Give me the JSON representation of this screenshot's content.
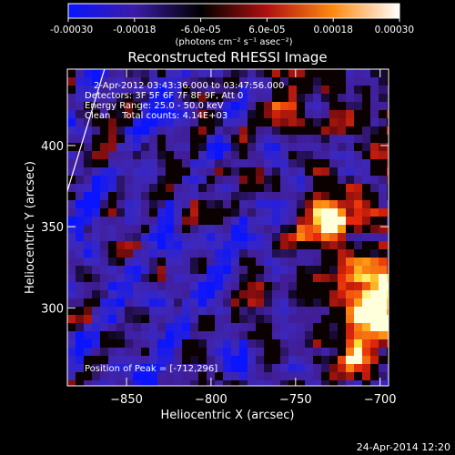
{
  "colorbar": {
    "tick_labels": [
      "-0.00030",
      "-0.00018",
      "-6.0e-05",
      "6.0e-05",
      "0.00018",
      "0.00030"
    ],
    "unit_label": "(photons cm⁻² s⁻¹ asec⁻²)",
    "range": [
      -0.0003,
      0.0003
    ],
    "colors": [
      "#0a14ff",
      "#3b1ca6",
      "#000000",
      "#b01010",
      "#ff8a10",
      "#ffffff"
    ]
  },
  "chart_data": {
    "type": "heatmap",
    "title": "Reconstructed RHESSI Image",
    "xlabel": "Heliocentric X (arcsec)",
    "ylabel": "Heliocentric Y (arcsec)",
    "xlim": [
      -885,
      -695
    ],
    "ylim": [
      252,
      447
    ],
    "xticks": [
      -850,
      -800,
      -750,
      -700
    ],
    "yticks": [
      300,
      350,
      400
    ],
    "xtick_labels": [
      "−850",
      "−800",
      "−750",
      "−700"
    ],
    "ytick_labels": [
      "300",
      "350",
      "400"
    ],
    "annotations": [
      "2-Apr-2012 03:43:36.000 to 03:47:56.000",
      "Detectors: 3F 5F 6F 7F 8F 9F, Att 0",
      "Energy Range: 25.0 - 50.0 keV",
      "Clean    Total counts: 4.14E+03"
    ],
    "peak_label": "Position of Peak = [-712,296]",
    "sources": [
      {
        "x": -731,
        "y": 354,
        "intensity": 1.0
      },
      {
        "x": -704,
        "y": 300,
        "intensity": 1.0
      },
      {
        "x": -707,
        "y": 325,
        "intensity": 0.55
      },
      {
        "x": -720,
        "y": 270,
        "intensity": 0.45
      },
      {
        "x": -760,
        "y": 415,
        "intensity": 0.35
      }
    ],
    "limb_line": {
      "points": [
        [
          -885,
          372
        ],
        [
          -863,
          447
        ]
      ]
    }
  },
  "footer": {
    "timestamp": "24-Apr-2014 12:20"
  }
}
